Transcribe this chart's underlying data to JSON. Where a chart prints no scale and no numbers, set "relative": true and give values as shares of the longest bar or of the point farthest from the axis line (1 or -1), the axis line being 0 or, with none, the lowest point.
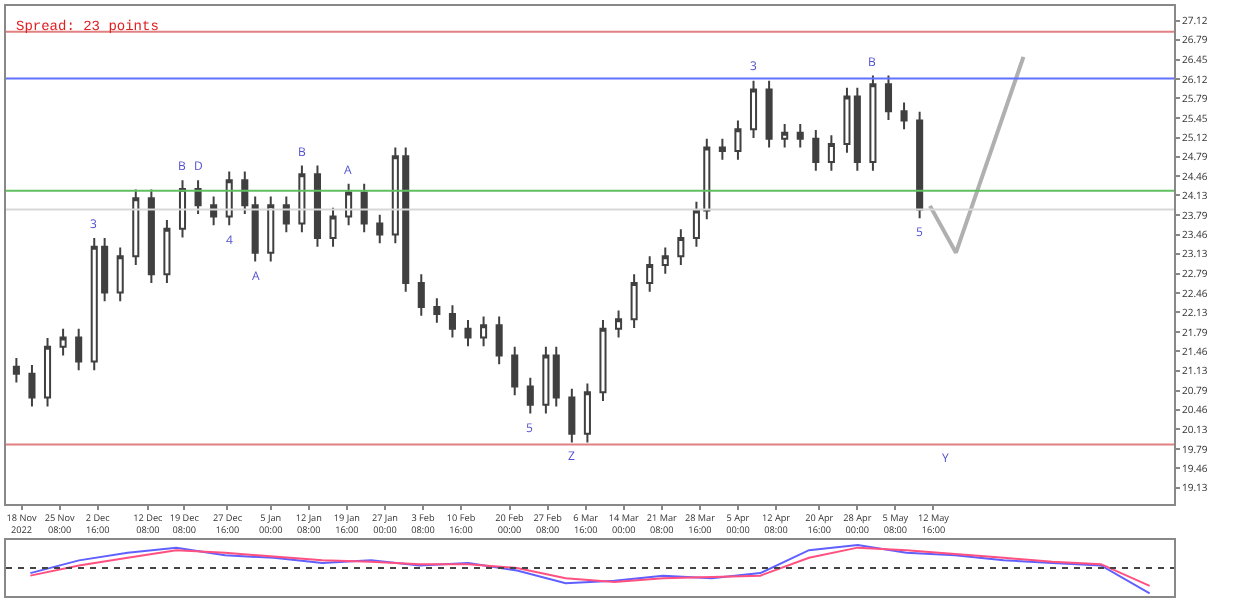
{
  "chart_data": [
    {
      "type": "candlestick",
      "color": "#404040",
      "annotations": [
        "Spread: 23 points",
        {
          "text": "3",
          "x": "2022-12-02",
          "y": 23.4
        },
        {
          "text": "B",
          "x": "2022-12-19",
          "y": 24.39
        },
        {
          "text": "D",
          "x": "2022-12-22",
          "y": 24.39
        },
        {
          "text": "4",
          "x": "2022-12-28",
          "y": 23.62
        },
        {
          "text": "A",
          "x": "2023-01-02",
          "y": 23.0
        },
        {
          "text": "B",
          "x": "2023-01-11",
          "y": 24.64
        },
        {
          "text": "A",
          "x": "2023-01-20",
          "y": 24.33
        },
        {
          "text": "5",
          "x": "2023-02-24",
          "y": 20.4
        },
        {
          "text": "Z",
          "x": "2023-03-04",
          "y": 19.9
        },
        {
          "text": "3",
          "x": "2023-04-08",
          "y": 26.09
        },
        {
          "text": "B",
          "x": "2023-05-01",
          "y": 26.18
        },
        {
          "text": "5",
          "x": "2023-05-10",
          "y": 23.74
        },
        {
          "text": "Y",
          "x": "2023-05-15",
          "y": 19.87
        }
      ],
      "x": [
        "2022-11-17",
        "2022-11-20",
        "2022-11-23",
        "2022-11-26",
        "2022-11-29",
        "2022-12-02",
        "2022-12-04",
        "2022-12-07",
        "2022-12-10",
        "2022-12-13",
        "2022-12-16",
        "2022-12-19",
        "2022-12-22",
        "2022-12-25",
        "2022-12-28",
        "2022-12-31",
        "2023-01-02",
        "2023-01-05",
        "2023-01-08",
        "2023-01-11",
        "2023-01-14",
        "2023-01-17",
        "2023-01-20",
        "2023-01-23",
        "2023-01-26",
        "2023-01-29",
        "2023-01-31",
        "2023-02-03",
        "2023-02-06",
        "2023-02-09",
        "2023-02-12",
        "2023-02-15",
        "2023-02-18",
        "2023-02-21",
        "2023-02-24",
        "2023-02-27",
        "2023-03-01",
        "2023-03-04",
        "2023-03-07",
        "2023-03-10",
        "2023-03-13",
        "2023-03-16",
        "2023-03-19",
        "2023-03-22",
        "2023-03-25",
        "2023-03-28",
        "2023-03-30",
        "2023-04-02",
        "2023-04-05",
        "2023-04-08",
        "2023-04-11",
        "2023-04-14",
        "2023-04-17",
        "2023-04-20",
        "2023-04-23",
        "2023-04-26",
        "2023-04-28",
        "2023-05-01",
        "2023-05-04",
        "2023-05-07",
        "2023-05-10"
      ],
      "ohlc": [
        [
          21.2,
          21.35,
          20.93,
          21.08
        ],
        [
          21.08,
          21.23,
          20.52,
          20.67
        ],
        [
          20.67,
          21.69,
          20.52,
          21.54
        ],
        [
          21.54,
          21.85,
          21.39,
          21.7
        ],
        [
          21.7,
          21.85,
          21.14,
          21.29
        ],
        [
          21.29,
          23.4,
          21.14,
          23.25
        ],
        [
          23.25,
          23.4,
          22.32,
          22.47
        ],
        [
          22.47,
          23.24,
          22.32,
          23.09
        ],
        [
          23.09,
          24.23,
          22.94,
          24.08
        ],
        [
          24.08,
          24.23,
          22.63,
          22.78
        ],
        [
          22.78,
          23.71,
          22.63,
          23.56
        ],
        [
          23.56,
          24.39,
          23.41,
          24.24
        ],
        [
          24.24,
          24.39,
          23.81,
          23.96
        ],
        [
          23.96,
          24.11,
          23.62,
          23.77
        ],
        [
          23.77,
          24.54,
          23.62,
          24.39
        ],
        [
          24.39,
          24.54,
          23.81,
          23.96
        ],
        [
          23.96,
          24.11,
          23.0,
          23.15
        ],
        [
          23.15,
          24.11,
          23.0,
          23.96
        ],
        [
          23.96,
          24.11,
          23.5,
          23.65
        ],
        [
          23.65,
          24.64,
          23.5,
          24.49
        ],
        [
          24.49,
          24.64,
          23.25,
          23.4
        ],
        [
          23.4,
          23.92,
          23.25,
          23.77
        ],
        [
          23.77,
          24.33,
          23.62,
          24.18
        ],
        [
          24.18,
          24.33,
          23.5,
          23.65
        ],
        [
          23.65,
          23.8,
          23.31,
          23.46
        ],
        [
          23.46,
          24.95,
          23.31,
          24.8
        ],
        [
          24.8,
          24.95,
          22.48,
          22.63
        ],
        [
          22.63,
          22.78,
          22.07,
          22.22
        ],
        [
          22.22,
          22.37,
          21.95,
          22.1
        ],
        [
          22.1,
          22.25,
          21.7,
          21.85
        ],
        [
          21.85,
          22.0,
          21.55,
          21.7
        ],
        [
          21.7,
          22.06,
          21.55,
          21.91
        ],
        [
          21.91,
          22.06,
          21.24,
          21.39
        ],
        [
          21.39,
          21.54,
          20.71,
          20.86
        ],
        [
          20.86,
          21.01,
          20.4,
          20.55
        ],
        [
          20.55,
          21.54,
          20.4,
          21.39
        ],
        [
          21.39,
          21.54,
          20.52,
          20.67
        ],
        [
          20.67,
          20.82,
          19.9,
          20.05
        ],
        [
          20.05,
          20.91,
          19.9,
          20.76
        ],
        [
          20.76,
          22.0,
          20.61,
          21.85
        ],
        [
          21.85,
          22.16,
          21.7,
          22.01
        ],
        [
          22.01,
          22.78,
          21.86,
          22.63
        ],
        [
          22.63,
          23.09,
          22.48,
          22.94
        ],
        [
          22.94,
          23.24,
          22.79,
          23.09
        ],
        [
          23.09,
          23.55,
          22.94,
          23.4
        ],
        [
          23.4,
          24.02,
          23.25,
          23.87
        ],
        [
          23.87,
          25.1,
          23.72,
          24.95
        ],
        [
          24.95,
          25.1,
          24.74,
          24.89
        ],
        [
          24.89,
          25.41,
          24.74,
          25.26
        ],
        [
          25.26,
          26.09,
          25.11,
          25.94
        ],
        [
          25.94,
          26.09,
          24.95,
          25.1
        ],
        [
          25.1,
          25.35,
          24.95,
          25.2
        ],
        [
          25.2,
          25.35,
          24.95,
          25.1
        ],
        [
          25.1,
          25.25,
          24.55,
          24.7
        ],
        [
          24.7,
          25.16,
          24.55,
          25.01
        ],
        [
          25.01,
          25.97,
          24.86,
          25.82
        ],
        [
          25.82,
          25.97,
          24.55,
          24.7
        ],
        [
          24.7,
          26.18,
          24.55,
          26.03
        ],
        [
          26.03,
          26.18,
          25.42,
          25.57
        ],
        [
          25.57,
          25.72,
          25.26,
          25.41
        ],
        [
          25.41,
          25.56,
          23.74,
          23.89
        ]
      ],
      "series": [
        {
          "type": "line",
          "color": "#b0b0b0",
          "x": [
            "2023-05-12",
            "2023-05-17",
            "2023-05-30"
          ],
          "values": [
            23.95,
            23.15,
            26.5
          ]
        }
      ],
      "ref_lines": [
        {
          "axis": "y",
          "value": 26.93,
          "color": "#e08080"
        },
        {
          "axis": "y",
          "value": 26.13,
          "color": "#6070ff"
        },
        {
          "axis": "y",
          "value": 24.21,
          "color": "#60c060"
        },
        {
          "axis": "y",
          "value": 23.89,
          "color": "#d8d8d8"
        },
        {
          "axis": "y",
          "value": 19.87,
          "color": "#e08080"
        }
      ],
      "xlim": [
        "2022-11-15",
        "2023-06-28"
      ],
      "xticks": [
        {
          "value": "2022-11-18",
          "label": "18 Nov 2022"
        },
        {
          "value": "2022-11-25T08:00",
          "label": "25 Nov 08:00"
        },
        {
          "value": "2022-12-02T16:00",
          "label": "2 Dec 16:00"
        },
        {
          "value": "2022-12-12T08:00",
          "label": "12 Dec 08:00"
        },
        {
          "value": "2022-12-19T08:00",
          "label": "19 Dec 08:00"
        },
        {
          "value": "2022-12-27T16:00",
          "label": "27 Dec 16:00"
        },
        {
          "value": "2023-01-05T00:00",
          "label": "5 Jan 00:00"
        },
        {
          "value": "2023-01-12T08:00",
          "label": "12 Jan 08:00"
        },
        {
          "value": "2023-01-19T16:00",
          "label": "19 Jan 16:00"
        },
        {
          "value": "2023-01-27T00:00",
          "label": "27 Jan 00:00"
        },
        {
          "value": "2023-02-03T08:00",
          "label": "3 Feb 08:00"
        },
        {
          "value": "2023-02-10T16:00",
          "label": "10 Feb 16:00"
        },
        {
          "value": "2023-02-20T00:00",
          "label": "20 Feb 00:00"
        },
        {
          "value": "2023-02-27T08:00",
          "label": "27 Feb 08:00"
        },
        {
          "value": "2023-03-06T16:00",
          "label": "6 Mar 16:00"
        },
        {
          "value": "2023-03-14T00:00",
          "label": "14 Mar 00:00"
        },
        {
          "value": "2023-03-21T08:00",
          "label": "21 Mar 08:00"
        },
        {
          "value": "2023-03-28T16:00",
          "label": "28 Mar 16:00"
        },
        {
          "value": "2023-04-05T00:00",
          "label": "5 Apr 00:00"
        },
        {
          "value": "2023-04-12T08:00",
          "label": "12 Apr 08:00"
        },
        {
          "value": "2023-04-20T16:00",
          "label": "20 Apr 16:00"
        },
        {
          "value": "2023-04-28T00:00",
          "label": "28 Apr 00:00"
        },
        {
          "value": "2023-05-05T08:00",
          "label": "5 May 08:00"
        },
        {
          "value": "2023-05-12T16:00",
          "label": "12 May 16:00"
        }
      ],
      "ylim": [
        18.85,
        27.37
      ],
      "yticks": [
        19.13,
        19.46,
        19.79,
        20.13,
        20.46,
        20.79,
        21.13,
        21.46,
        21.79,
        22.13,
        22.46,
        22.79,
        23.13,
        23.46,
        23.79,
        24.13,
        24.46,
        24.79,
        25.12,
        25.45,
        25.79,
        26.12,
        26.45,
        26.79,
        27.12
      ]
    },
    {
      "type": "line",
      "relative": true,
      "ref_lines": [
        {
          "axis": "y",
          "value": 0,
          "color": "#444444",
          "line_style": "dotted"
        }
      ],
      "categories": [
        null,
        null,
        null,
        null,
        null,
        null,
        null,
        null,
        null,
        null,
        null,
        null,
        null,
        null,
        null,
        null,
        null,
        null,
        null,
        null,
        null,
        null,
        null,
        null
      ],
      "series": [
        {
          "color": "#6060ff",
          "values": [
            -0.2,
            0.3,
            0.6,
            0.8,
            0.5,
            0.4,
            0.2,
            0.3,
            0.1,
            0.2,
            -0.1,
            -0.6,
            -0.5,
            -0.3,
            -0.4,
            -0.2,
            0.7,
            0.9,
            0.6,
            0.5,
            0.3,
            0.2,
            0.1,
            -1
          ]
        },
        {
          "color": "#ff5080",
          "values": [
            -0.3,
            0.1,
            0.4,
            0.7,
            0.6,
            0.45,
            0.3,
            0.25,
            0.15,
            0.15,
            0.0,
            -0.4,
            -0.55,
            -0.4,
            -0.35,
            -0.3,
            0.4,
            0.8,
            0.7,
            0.55,
            0.4,
            0.25,
            0.15,
            -0.7
          ]
        }
      ]
    }
  ]
}
